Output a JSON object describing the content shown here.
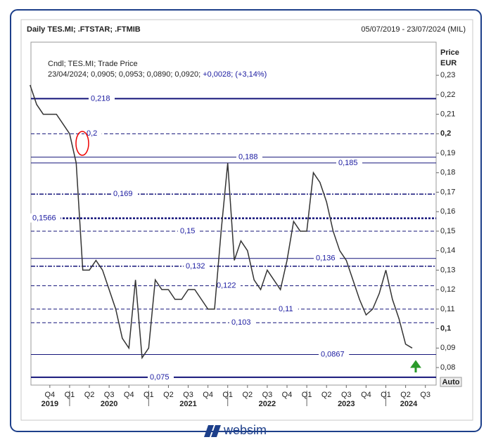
{
  "chart_data": {
    "type": "line",
    "title": "Daily TES.MI; .FTSTAR; .FTMIB",
    "date_range": "05/07/2019 - 23/07/2024 (MIL)",
    "y_axis_label": "Price",
    "y_axis_unit": "EUR",
    "legend_title": "Cndl; TES.MI; Trade Price",
    "legend_info": "23/04/2024; 0,0905; 0,0953; 0,0890; 0,0920;",
    "legend_change": "+0,0028; (+3,14%)",
    "scale_button": "Auto",
    "brand": "websim",
    "xlim": [
      "2019-07-05",
      "2024-08-20"
    ],
    "ylim": [
      0.071,
      0.247
    ],
    "yticks": [
      {
        "value": 0.08,
        "label": "0,08"
      },
      {
        "value": 0.09,
        "label": "0,09"
      },
      {
        "value": 0.1,
        "label": "0,1"
      },
      {
        "value": 0.11,
        "label": "0,11"
      },
      {
        "value": 0.12,
        "label": "0,12"
      },
      {
        "value": 0.13,
        "label": "0,13"
      },
      {
        "value": 0.14,
        "label": "0,14"
      },
      {
        "value": 0.15,
        "label": "0,15"
      },
      {
        "value": 0.16,
        "label": "0,16"
      },
      {
        "value": 0.17,
        "label": "0,17"
      },
      {
        "value": 0.18,
        "label": "0,18"
      },
      {
        "value": 0.19,
        "label": "0,19"
      },
      {
        "value": 0.2,
        "label": "0,2"
      },
      {
        "value": 0.21,
        "label": "0,21"
      },
      {
        "value": 0.22,
        "label": "0,22"
      },
      {
        "value": 0.23,
        "label": "0,23"
      }
    ],
    "xticks": [
      {
        "value": "2019-10-01",
        "label": "Q4"
      },
      {
        "value": "2020-01-01",
        "label": "Q1"
      },
      {
        "value": "2020-04-01",
        "label": "Q2"
      },
      {
        "value": "2020-07-01",
        "label": "Q3"
      },
      {
        "value": "2020-10-01",
        "label": "Q4"
      },
      {
        "value": "2021-01-01",
        "label": "Q1"
      },
      {
        "value": "2021-04-01",
        "label": "Q2"
      },
      {
        "value": "2021-07-01",
        "label": "Q3"
      },
      {
        "value": "2021-10-01",
        "label": "Q4"
      },
      {
        "value": "2022-01-01",
        "label": "Q1"
      },
      {
        "value": "2022-04-01",
        "label": "Q2"
      },
      {
        "value": "2022-07-01",
        "label": "Q3"
      },
      {
        "value": "2022-10-01",
        "label": "Q4"
      },
      {
        "value": "2023-01-01",
        "label": "Q1"
      },
      {
        "value": "2023-04-01",
        "label": "Q2"
      },
      {
        "value": "2023-07-01",
        "label": "Q3"
      },
      {
        "value": "2023-10-01",
        "label": "Q4"
      },
      {
        "value": "2024-01-01",
        "label": "Q1"
      },
      {
        "value": "2024-04-01",
        "label": "Q2"
      },
      {
        "value": "2024-07-01",
        "label": "Q3"
      }
    ],
    "year_labels": [
      {
        "value": "2019-10-01",
        "label": "2019"
      },
      {
        "value": "2020-07-01",
        "label": "2020"
      },
      {
        "value": "2021-07-01",
        "label": "2021"
      },
      {
        "value": "2022-07-01",
        "label": "2022"
      },
      {
        "value": "2023-07-01",
        "label": "2023"
      },
      {
        "value": "2024-04-15",
        "label": "2024"
      }
    ],
    "levels": [
      {
        "value": 0.218,
        "label": "0,218",
        "style": "solid-thick"
      },
      {
        "value": 0.2,
        "label": "0,2",
        "style": "dashed"
      },
      {
        "value": 0.188,
        "label": "0,188",
        "style": "solid"
      },
      {
        "value": 0.185,
        "label": "0,185",
        "style": "solid"
      },
      {
        "value": 0.169,
        "label": "0,169",
        "style": "dashdot"
      },
      {
        "value": 0.1566,
        "label": "0,1566",
        "style": "dotted-thick"
      },
      {
        "value": 0.15,
        "label": "0,15",
        "style": "dashed"
      },
      {
        "value": 0.136,
        "label": "0,136",
        "style": "solid"
      },
      {
        "value": 0.132,
        "label": "0,132",
        "style": "dashdot"
      },
      {
        "value": 0.122,
        "label": "0,122",
        "style": "dashed"
      },
      {
        "value": 0.11,
        "label": "0,11",
        "style": "dashed"
      },
      {
        "value": 0.103,
        "label": "0,103",
        "style": "dashed"
      },
      {
        "value": 0.0867,
        "label": "0,0867",
        "style": "solid"
      },
      {
        "value": 0.075,
        "label": "0,075",
        "style": "solid-thick"
      }
    ],
    "x": [
      "2019-07",
      "2019-08",
      "2019-09",
      "2019-10",
      "2019-11",
      "2019-12",
      "2020-01",
      "2020-02",
      "2020-03",
      "2020-04",
      "2020-05",
      "2020-06",
      "2020-07",
      "2020-08",
      "2020-09",
      "2020-10",
      "2020-11",
      "2020-12",
      "2021-01",
      "2021-02",
      "2021-03",
      "2021-04",
      "2021-05",
      "2021-06",
      "2021-07",
      "2021-08",
      "2021-09",
      "2021-10",
      "2021-11",
      "2021-12",
      "2022-01",
      "2022-02",
      "2022-03",
      "2022-04",
      "2022-05",
      "2022-06",
      "2022-07",
      "2022-08",
      "2022-09",
      "2022-10",
      "2022-11",
      "2022-12",
      "2023-01",
      "2023-02",
      "2023-03",
      "2023-04",
      "2023-05",
      "2023-06",
      "2023-07",
      "2023-08",
      "2023-09",
      "2023-10",
      "2023-11",
      "2023-12",
      "2024-01",
      "2024-02",
      "2024-03",
      "2024-04",
      "2024-05"
    ],
    "series": [
      {
        "name": "TES.MI",
        "color": "#333333",
        "values": [
          0.225,
          0.215,
          0.21,
          0.21,
          0.21,
          0.205,
          0.2,
          0.185,
          0.13,
          0.13,
          0.135,
          0.13,
          0.12,
          0.11,
          0.095,
          0.09,
          0.125,
          0.085,
          0.09,
          0.125,
          0.12,
          0.12,
          0.115,
          0.115,
          0.12,
          0.12,
          0.115,
          0.11,
          0.11,
          0.15,
          0.185,
          0.135,
          0.145,
          0.14,
          0.125,
          0.12,
          0.13,
          0.125,
          0.12,
          0.135,
          0.155,
          0.15,
          0.15,
          0.18,
          0.175,
          0.165,
          0.15,
          0.14,
          0.135,
          0.125,
          0.115,
          0.107,
          0.11,
          0.118,
          0.13,
          0.115,
          0.105,
          0.092,
          0.09
        ]
      }
    ]
  }
}
